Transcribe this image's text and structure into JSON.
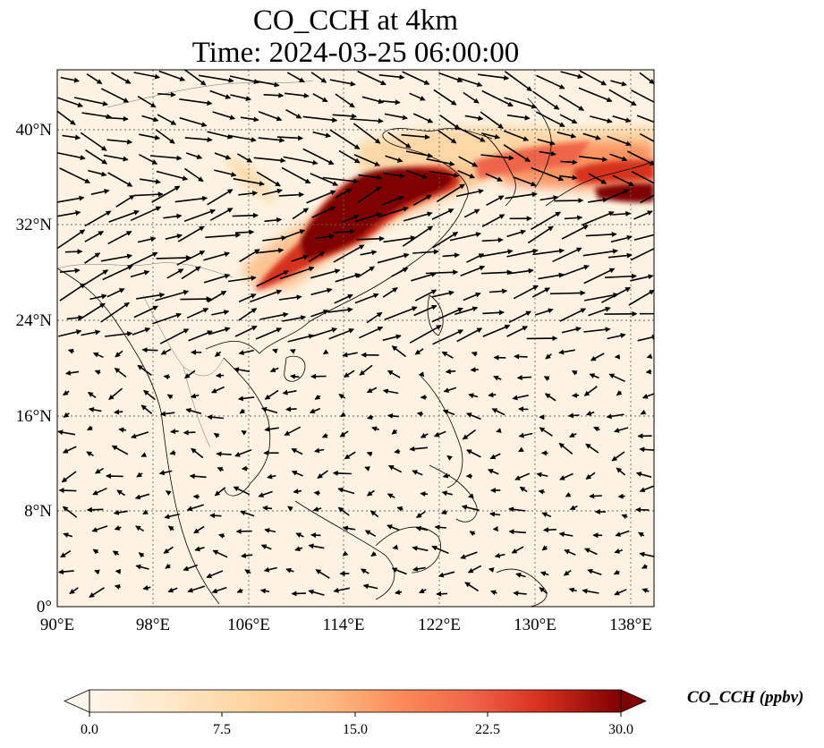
{
  "title": {
    "line1": "CO_CCH at 4km",
    "line2": "Time: 2024-03-25 06:00:00"
  },
  "map": {
    "extent": {
      "lon": [
        90,
        140
      ],
      "lat": [
        0,
        45
      ]
    },
    "lon_ticks": [
      90,
      98,
      106,
      114,
      122,
      130,
      138
    ],
    "lat_ticks": [
      0,
      8,
      16,
      24,
      32,
      40
    ],
    "lon_labels": [
      "90°E",
      "98°E",
      "106°E",
      "114°E",
      "122°E",
      "130°E",
      "138°E"
    ],
    "lat_labels": [
      "0°",
      "8°N",
      "16°N",
      "24°N",
      "32°N",
      "40°N"
    ],
    "gridlines": true,
    "vectors": "wind arrows, predominantly westerly north of 20°N, weak and variable in the tropics",
    "colors": {
      "background": "#fef3e3",
      "high": "#7f0000",
      "mid": "#d7301f",
      "low": "#fdbb84"
    }
  },
  "colorbar": {
    "label": "CO_CCH (ppbv)",
    "min": 0.0,
    "max": 30.0,
    "extend": "both",
    "ticks": [
      "0.0",
      "7.5",
      "15.0",
      "22.5",
      "30.0"
    ],
    "colormap": "OrRd"
  }
}
